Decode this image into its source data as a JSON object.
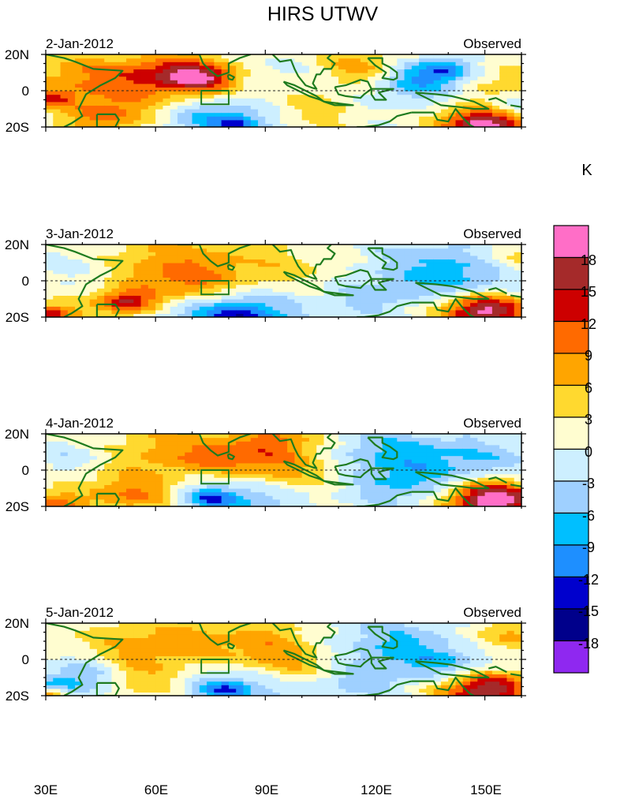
{
  "chart_data": {
    "type": "heatmap",
    "title": "HIRS UTWV",
    "panel_right_label": "Observed",
    "x_ticks": [
      {
        "value": 30,
        "label": "30E"
      },
      {
        "value": 60,
        "label": "60E"
      },
      {
        "value": 90,
        "label": "90E"
      },
      {
        "value": 120,
        "label": "120E"
      },
      {
        "value": 150,
        "label": "150E"
      }
    ],
    "y_ticks": [
      {
        "value": 20,
        "label": "20N"
      },
      {
        "value": 0,
        "label": "0"
      },
      {
        "value": -20,
        "label": "20S"
      }
    ],
    "xlim": [
      30,
      160
    ],
    "ylim": [
      -20,
      20
    ],
    "box_region": {
      "lon": [
        72.5,
        80
      ],
      "lat": [
        -7.5,
        0
      ]
    },
    "colorbar": {
      "unit": "K",
      "levels": [
        "18",
        "15",
        "12",
        "9",
        "6",
        "3",
        "0",
        "-3",
        "-6",
        "-9",
        "-12",
        "-15",
        "-18"
      ],
      "colors": [
        "#ff6ec7",
        "#a52a2a",
        "#cd0000",
        "#ff6a00",
        "#ffa500",
        "#ffd92f",
        "#fffdd0",
        "#cdefff",
        "#9fd0ff",
        "#00bfff",
        "#1e8fff",
        "#0000cd",
        "#00008b",
        "#8f28f0"
      ]
    },
    "panels": [
      {
        "date": "2-Jan-2012",
        "blobs": [
          {
            "lon": 74,
            "lat": 7,
            "r": 10,
            "a": 12
          },
          {
            "lon": 72,
            "lat": 8,
            "r": 4,
            "a": 6
          },
          {
            "lon": 55,
            "lat": 2,
            "r": 14,
            "a": 5
          },
          {
            "lon": 63,
            "lat": 11,
            "r": 8,
            "a": 6
          },
          {
            "lon": 40,
            "lat": 8,
            "r": 12,
            "a": 6
          },
          {
            "lon": 47,
            "lat": -14,
            "r": 9,
            "a": 8
          },
          {
            "lon": 135,
            "lat": 9,
            "r": 9,
            "a": -13
          },
          {
            "lon": 140,
            "lat": 12,
            "r": 4,
            "a": -4
          },
          {
            "lon": 78,
            "lat": -15,
            "r": 12,
            "a": -10
          },
          {
            "lon": 82,
            "lat": -19,
            "r": 4,
            "a": -6
          },
          {
            "lon": 150,
            "lat": -18,
            "r": 8,
            "a": 20
          },
          {
            "lon": 118,
            "lat": 14,
            "r": 10,
            "a": 7
          },
          {
            "lon": 100,
            "lat": -10,
            "r": 10,
            "a": 5
          },
          {
            "lon": 152,
            "lat": 6,
            "r": 9,
            "a": 5
          },
          {
            "lon": 32,
            "lat": -4,
            "r": 4,
            "a": 8
          },
          {
            "lon": 158,
            "lat": -10,
            "r": 6,
            "a": -6
          },
          {
            "lon": 88,
            "lat": 10,
            "r": 10,
            "a": -4
          },
          {
            "lon": 125,
            "lat": -3,
            "r": 8,
            "a": -3
          }
        ]
      },
      {
        "date": "3-Jan-2012",
        "blobs": [
          {
            "lon": 66,
            "lat": 8,
            "r": 16,
            "a": 8
          },
          {
            "lon": 70,
            "lat": -4,
            "r": 9,
            "a": 6
          },
          {
            "lon": 40,
            "lat": 8,
            "r": 10,
            "a": -3
          },
          {
            "lon": 52,
            "lat": -12,
            "r": 6,
            "a": 14
          },
          {
            "lon": 80,
            "lat": -18,
            "r": 14,
            "a": -11
          },
          {
            "lon": 84,
            "lat": -20,
            "r": 6,
            "a": -6
          },
          {
            "lon": 150,
            "lat": -16,
            "r": 8,
            "a": 19
          },
          {
            "lon": 135,
            "lat": 10,
            "r": 14,
            "a": -6
          },
          {
            "lon": 100,
            "lat": 4,
            "r": 14,
            "a": 3
          },
          {
            "lon": 118,
            "lat": -8,
            "r": 10,
            "a": -5
          },
          {
            "lon": 145,
            "lat": 0,
            "r": 10,
            "a": -5
          },
          {
            "lon": 32,
            "lat": -18,
            "r": 5,
            "a": 12
          },
          {
            "lon": 158,
            "lat": 12,
            "r": 8,
            "a": 4
          }
        ]
      },
      {
        "date": "4-Jan-2012",
        "blobs": [
          {
            "lon": 68,
            "lat": 8,
            "r": 18,
            "a": 7
          },
          {
            "lon": 88,
            "lat": 4,
            "r": 12,
            "a": 7
          },
          {
            "lon": 55,
            "lat": -14,
            "r": 10,
            "a": 9
          },
          {
            "lon": 38,
            "lat": 8,
            "r": 9,
            "a": -4
          },
          {
            "lon": 78,
            "lat": -14,
            "r": 13,
            "a": -11
          },
          {
            "lon": 75,
            "lat": -15,
            "r": 4,
            "a": -6
          },
          {
            "lon": 152,
            "lat": -16,
            "r": 9,
            "a": 21
          },
          {
            "lon": 125,
            "lat": 10,
            "r": 14,
            "a": -7
          },
          {
            "lon": 128,
            "lat": -8,
            "r": 12,
            "a": -6
          },
          {
            "lon": 104,
            "lat": -3,
            "r": 10,
            "a": 3
          },
          {
            "lon": 150,
            "lat": 6,
            "r": 10,
            "a": -5
          },
          {
            "lon": 32,
            "lat": -18,
            "r": 5,
            "a": 10
          },
          {
            "lon": 96,
            "lat": 18,
            "r": 8,
            "a": 5
          }
        ]
      },
      {
        "date": "5-Jan-2012",
        "blobs": [
          {
            "lon": 58,
            "lat": 8,
            "r": 12,
            "a": 7
          },
          {
            "lon": 88,
            "lat": 10,
            "r": 12,
            "a": 6
          },
          {
            "lon": 96,
            "lat": -6,
            "r": 12,
            "a": 7
          },
          {
            "lon": 60,
            "lat": -12,
            "r": 10,
            "a": 5
          },
          {
            "lon": 40,
            "lat": -8,
            "r": 8,
            "a": -6
          },
          {
            "lon": 33,
            "lat": -16,
            "r": 6,
            "a": -8
          },
          {
            "lon": 82,
            "lat": -15,
            "r": 12,
            "a": -10
          },
          {
            "lon": 79,
            "lat": -16,
            "r": 4,
            "a": -6
          },
          {
            "lon": 150,
            "lat": -16,
            "r": 9,
            "a": 18
          },
          {
            "lon": 125,
            "lat": 8,
            "r": 14,
            "a": -7
          },
          {
            "lon": 140,
            "lat": -4,
            "r": 10,
            "a": -6
          },
          {
            "lon": 113,
            "lat": -12,
            "r": 9,
            "a": -6
          },
          {
            "lon": 155,
            "lat": 12,
            "r": 8,
            "a": 6
          },
          {
            "lon": 31,
            "lat": -19,
            "r": 4,
            "a": 12
          }
        ]
      }
    ]
  }
}
